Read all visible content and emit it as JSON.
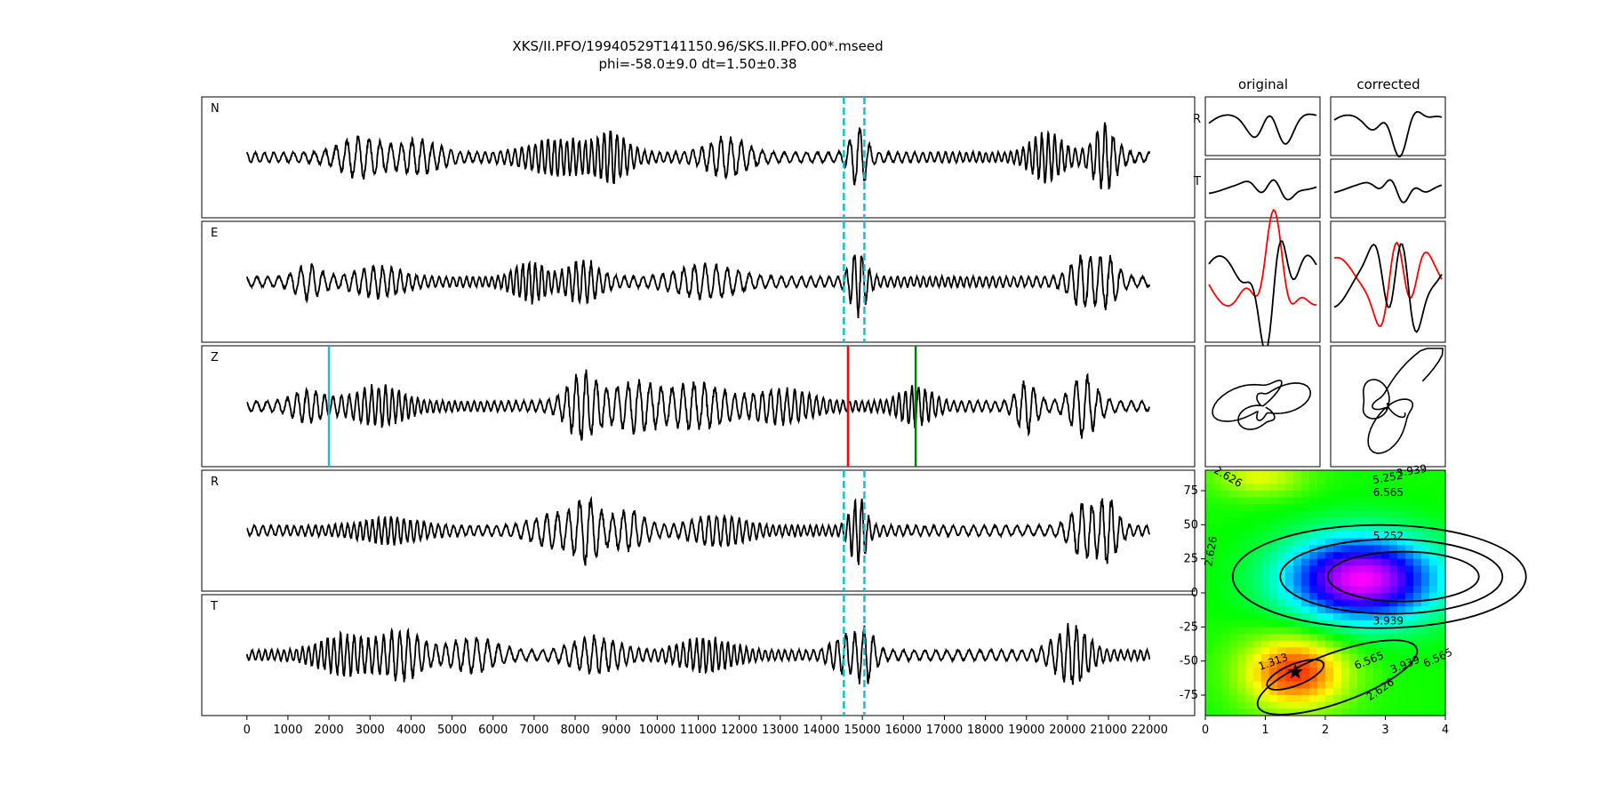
{
  "title": {
    "line1": "XKS/II.PFO/19940529T141150.96/SKS.II.PFO.00*.mseed",
    "line2": "phi=-58.0±9.0 dt=1.50±0.38"
  },
  "headers": {
    "original": "original",
    "corrected": "corrected"
  },
  "chart_data": [
    {
      "type": "line",
      "name": "seismogram-traces",
      "channels": [
        "N",
        "E",
        "Z",
        "R",
        "T"
      ],
      "xlim": [
        -1100,
        23100
      ],
      "x_ticks": [
        0,
        1000,
        2000,
        3000,
        4000,
        5000,
        6000,
        7000,
        8000,
        9000,
        10000,
        11000,
        12000,
        13000,
        14000,
        15000,
        16000,
        17000,
        18000,
        19000,
        20000,
        21000,
        22000
      ],
      "trace_range": [
        0,
        22000
      ],
      "window": {
        "start": 14550,
        "end": 15050,
        "color": "#17becf"
      },
      "z_markers": [
        {
          "x": 2000,
          "color": "#17becf"
        },
        {
          "x": 14650,
          "color": "#ff0000"
        },
        {
          "x": 16300,
          "color": "#008000"
        }
      ]
    },
    {
      "type": "line",
      "name": "particle-motion-panels",
      "row_labels": [
        "R",
        "T"
      ],
      "columns": [
        "original",
        "corrected"
      ],
      "overlay_colors": [
        "#000000",
        "#ff0000"
      ]
    },
    {
      "type": "heatmap",
      "name": "error-surface",
      "xlim": [
        0,
        4
      ],
      "ylim": [
        -90,
        90
      ],
      "x_ticks": [
        0,
        1,
        2,
        3,
        4
      ],
      "y_ticks": [
        75,
        50,
        25,
        0,
        -25,
        -50,
        -75
      ],
      "contour_labels": [
        "1.313",
        "2.626",
        "3.939",
        "5.252",
        "6.565",
        "2.626",
        "5.252",
        "3.939",
        "6.565",
        "3.939",
        "2.626",
        "6.565",
        "5.25"
      ],
      "best": {
        "dt": 1.5,
        "phi": -58.0
      }
    }
  ]
}
